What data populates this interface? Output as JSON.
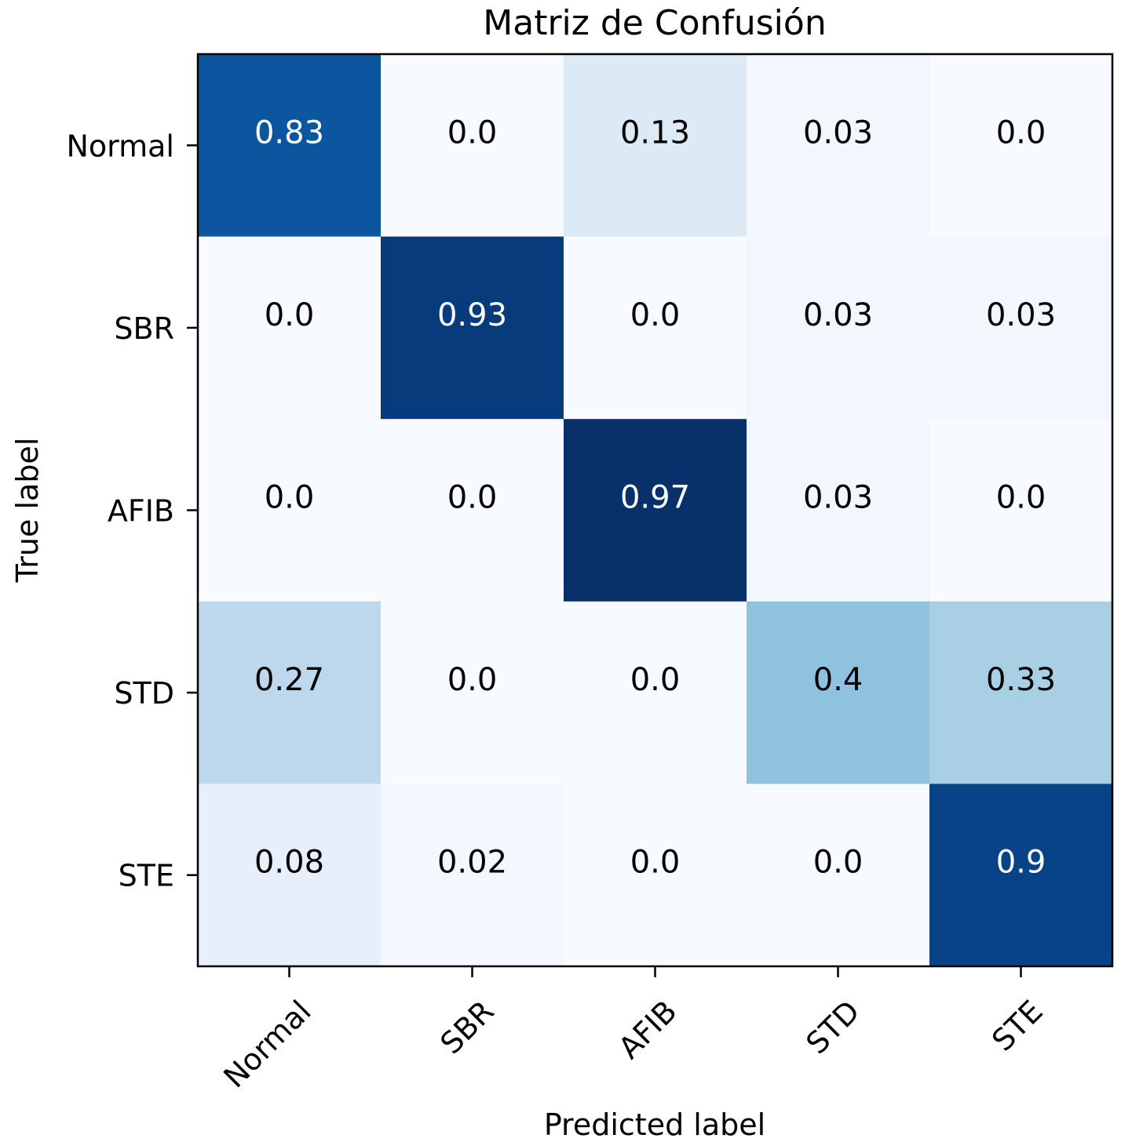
{
  "chart_data": {
    "type": "heatmap",
    "title": "Matriz de Confusión",
    "xlabel": "Predicted label",
    "ylabel": "True label",
    "x_categories": [
      "Normal",
      "SBR",
      "AFIB",
      "STD",
      "STE"
    ],
    "y_categories": [
      "Normal",
      "SBR",
      "AFIB",
      "STD",
      "STE"
    ],
    "matrix": [
      [
        "0.83",
        "0.0",
        "0.13",
        "0.03",
        "0.0"
      ],
      [
        "0.0",
        "0.93",
        "0.0",
        "0.03",
        "0.03"
      ],
      [
        "0.0",
        "0.0",
        "0.97",
        "0.03",
        "0.0"
      ],
      [
        "0.27",
        "0.0",
        "0.0",
        "0.4",
        "0.33"
      ],
      [
        "0.08",
        "0.02",
        "0.0",
        "0.0",
        "0.9"
      ]
    ],
    "colormap": "Blues",
    "value_range": [
      0,
      0.97
    ],
    "colors": {
      "low": "#f7fbff",
      "high": "#08306b",
      "text_dark": "#000000",
      "text_light": "#ffffff"
    },
    "grid": false,
    "legend": "none"
  }
}
